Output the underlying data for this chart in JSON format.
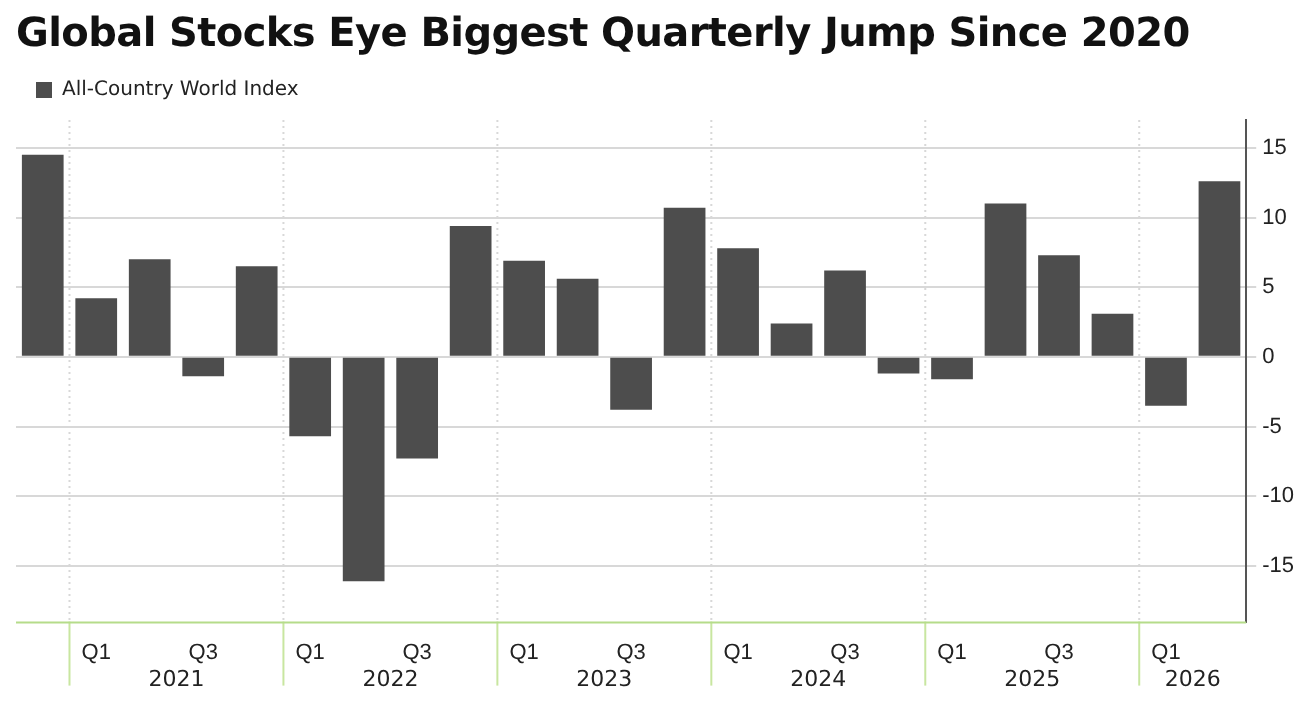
{
  "chart_data": {
    "type": "bar",
    "title": "Global Stocks Eye Biggest Quarterly Jump Since 2020",
    "categories": [
      null,
      "Q1",
      null,
      "Q3",
      null,
      "Q1",
      null,
      "Q3",
      null,
      "Q1",
      null,
      "Q3",
      null,
      "Q1",
      null,
      "Q3",
      null,
      "Q1",
      null,
      "Q3",
      null,
      "Q1",
      null
    ],
    "series": [
      {
        "name": "All-Country World Index",
        "color": "#4d4d4d",
        "values": [
          14.5,
          4.2,
          7.0,
          -1.4,
          6.5,
          -5.7,
          -16.1,
          -7.3,
          9.4,
          6.9,
          5.6,
          -3.8,
          10.7,
          7.8,
          2.4,
          6.2,
          -1.2,
          -1.6,
          11.0,
          7.3,
          3.1,
          -3.5,
          12.6
        ]
      }
    ],
    "annotations": [
      "2021",
      "2022",
      "2023",
      "2024",
      "2025",
      "2026"
    ],
    "ylim": [
      -19,
      17
    ],
    "yticks": [
      -15,
      -10,
      -5,
      0,
      5,
      10,
      15
    ],
    "grid": true,
    "legend": "top left"
  }
}
